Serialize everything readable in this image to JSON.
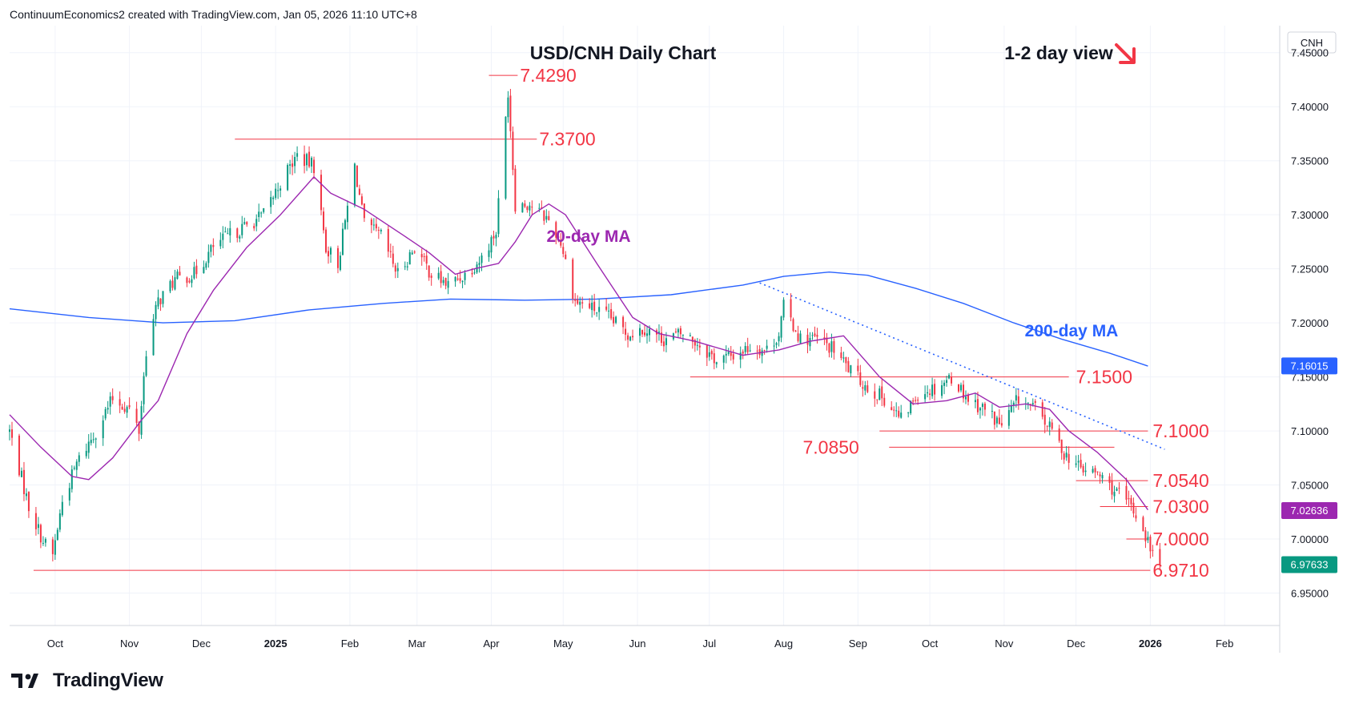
{
  "header": {
    "attribution": "ContinuumEconomics2 created with TradingView.com, Jan 05, 2026 11:10 UTC+8"
  },
  "brand": {
    "name": "TradingView"
  },
  "chart_data": {
    "type": "candlestick",
    "title": "USD/CNH Daily Chart",
    "view_label": "1-2 day view",
    "view_direction_icon": "down-right-arrow",
    "axis_symbol": "CNH",
    "ylim": [
      6.92,
      7.475
    ],
    "yticks": [
      "7.45000",
      "7.40000",
      "7.35000",
      "7.30000",
      "7.25000",
      "7.20000",
      "7.15000",
      "7.10000",
      "7.05000",
      "7.00000",
      "6.95000"
    ],
    "xticks": [
      {
        "label": "Oct",
        "date": "2024-10-01",
        "bold": false
      },
      {
        "label": "Nov",
        "date": "2024-11-01",
        "bold": false
      },
      {
        "label": "Dec",
        "date": "2024-12-01",
        "bold": false
      },
      {
        "label": "2025",
        "date": "2025-01-01",
        "bold": true
      },
      {
        "label": "Feb",
        "date": "2025-02-01",
        "bold": false
      },
      {
        "label": "Mar",
        "date": "2025-03-01",
        "bold": false
      },
      {
        "label": "Apr",
        "date": "2025-04-01",
        "bold": false
      },
      {
        "label": "May",
        "date": "2025-05-01",
        "bold": false
      },
      {
        "label": "Jun",
        "date": "2025-06-01",
        "bold": false
      },
      {
        "label": "Jul",
        "date": "2025-07-01",
        "bold": false
      },
      {
        "label": "Aug",
        "date": "2025-08-01",
        "bold": false
      },
      {
        "label": "Sep",
        "date": "2025-09-01",
        "bold": false
      },
      {
        "label": "Oct",
        "date": "2025-10-01",
        "bold": false
      },
      {
        "label": "Nov",
        "date": "2025-11-01",
        "bold": false
      },
      {
        "label": "Dec",
        "date": "2025-12-01",
        "bold": false
      },
      {
        "label": "2026",
        "date": "2026-01-01",
        "bold": true
      },
      {
        "label": "Feb",
        "date": "2026-02-01",
        "bold": false
      }
    ],
    "xlim": [
      "2024-09-12",
      "2026-02-24"
    ],
    "close_anchors": [
      [
        "2024-09-12",
        7.1
      ],
      [
        "2024-09-20",
        7.03
      ],
      [
        "2024-09-26",
        6.998
      ],
      [
        "2024-09-30",
        6.985
      ],
      [
        "2024-10-04",
        7.035
      ],
      [
        "2024-10-10",
        7.07
      ],
      [
        "2024-10-18",
        7.1
      ],
      [
        "2024-10-25",
        7.13
      ],
      [
        "2024-11-01",
        7.12
      ],
      [
        "2024-11-05",
        7.1
      ],
      [
        "2024-11-08",
        7.175
      ],
      [
        "2024-11-13",
        7.22
      ],
      [
        "2024-11-20",
        7.24
      ],
      [
        "2024-11-28",
        7.245
      ],
      [
        "2024-12-06",
        7.27
      ],
      [
        "2024-12-12",
        7.28
      ],
      [
        "2024-12-20",
        7.29
      ],
      [
        "2024-12-27",
        7.3
      ],
      [
        "2025-01-03",
        7.33
      ],
      [
        "2025-01-10",
        7.355
      ],
      [
        "2025-01-17",
        7.345
      ],
      [
        "2025-01-22",
        7.27
      ],
      [
        "2025-01-27",
        7.255
      ],
      [
        "2025-02-03",
        7.345
      ],
      [
        "2025-02-07",
        7.29
      ],
      [
        "2025-02-14",
        7.28
      ],
      [
        "2025-02-21",
        7.245
      ],
      [
        "2025-02-28",
        7.27
      ],
      [
        "2025-03-07",
        7.245
      ],
      [
        "2025-03-14",
        7.235
      ],
      [
        "2025-03-21",
        7.245
      ],
      [
        "2025-03-28",
        7.26
      ],
      [
        "2025-04-03",
        7.285
      ],
      [
        "2025-04-08",
        7.415
      ],
      [
        "2025-04-11",
        7.31
      ],
      [
        "2025-04-17",
        7.31
      ],
      [
        "2025-04-25",
        7.295
      ],
      [
        "2025-04-30",
        7.275
      ],
      [
        "2025-05-06",
        7.22
      ],
      [
        "2025-05-12",
        7.215
      ],
      [
        "2025-05-20",
        7.205
      ],
      [
        "2025-05-28",
        7.19
      ],
      [
        "2025-06-04",
        7.195
      ],
      [
        "2025-06-12",
        7.185
      ],
      [
        "2025-06-20",
        7.19
      ],
      [
        "2025-06-27",
        7.18
      ],
      [
        "2025-07-04",
        7.165
      ],
      [
        "2025-07-11",
        7.17
      ],
      [
        "2025-07-18",
        7.178
      ],
      [
        "2025-07-25",
        7.175
      ],
      [
        "2025-07-30",
        7.19
      ],
      [
        "2025-08-01",
        7.215
      ],
      [
        "2025-08-08",
        7.185
      ],
      [
        "2025-08-15",
        7.185
      ],
      [
        "2025-08-22",
        7.175
      ],
      [
        "2025-08-29",
        7.155
      ],
      [
        "2025-09-05",
        7.14
      ],
      [
        "2025-09-12",
        7.13
      ],
      [
        "2025-09-19",
        7.11
      ],
      [
        "2025-09-26",
        7.135
      ],
      [
        "2025-10-03",
        7.14
      ],
      [
        "2025-10-10",
        7.15
      ],
      [
        "2025-10-17",
        7.13
      ],
      [
        "2025-10-24",
        7.12
      ],
      [
        "2025-10-31",
        7.105
      ],
      [
        "2025-11-07",
        7.13
      ],
      [
        "2025-11-14",
        7.12
      ],
      [
        "2025-11-21",
        7.1
      ],
      [
        "2025-11-26",
        7.08
      ],
      [
        "2025-12-03",
        7.065
      ],
      [
        "2025-12-10",
        7.06
      ],
      [
        "2025-12-17",
        7.045
      ],
      [
        "2025-12-24",
        7.03
      ],
      [
        "2025-12-29",
        7.01
      ],
      [
        "2026-01-02",
        6.985
      ],
      [
        "2026-01-05",
        6.976
      ]
    ],
    "ma20": {
      "label": "20-day MA",
      "color": "#9c27b0",
      "points": [
        [
          "2024-09-12",
          7.115
        ],
        [
          "2024-09-25",
          7.085
        ],
        [
          "2024-10-08",
          7.058
        ],
        [
          "2024-10-15",
          7.055
        ],
        [
          "2024-10-25",
          7.075
        ],
        [
          "2024-11-06",
          7.11
        ],
        [
          "2024-11-13",
          7.128
        ],
        [
          "2024-11-25",
          7.19
        ],
        [
          "2024-12-06",
          7.23
        ],
        [
          "2024-12-20",
          7.27
        ],
        [
          "2025-01-03",
          7.3
        ],
        [
          "2025-01-17",
          7.335
        ],
        [
          "2025-01-24",
          7.32
        ],
        [
          "2025-02-07",
          7.305
        ],
        [
          "2025-02-24",
          7.28
        ],
        [
          "2025-03-06",
          7.265
        ],
        [
          "2025-03-17",
          7.245
        ],
        [
          "2025-03-25",
          7.25
        ],
        [
          "2025-04-04",
          7.255
        ],
        [
          "2025-04-11",
          7.275
        ],
        [
          "2025-04-18",
          7.3
        ],
        [
          "2025-04-25",
          7.31
        ],
        [
          "2025-05-02",
          7.3
        ],
        [
          "2025-05-15",
          7.255
        ],
        [
          "2025-05-30",
          7.205
        ],
        [
          "2025-06-10",
          7.19
        ],
        [
          "2025-06-25",
          7.183
        ],
        [
          "2025-07-15",
          7.17
        ],
        [
          "2025-07-30",
          7.175
        ],
        [
          "2025-08-12",
          7.183
        ],
        [
          "2025-08-26",
          7.188
        ],
        [
          "2025-09-10",
          7.15
        ],
        [
          "2025-09-24",
          7.125
        ],
        [
          "2025-10-08",
          7.128
        ],
        [
          "2025-10-20",
          7.135
        ],
        [
          "2025-10-30",
          7.122
        ],
        [
          "2025-11-10",
          7.125
        ],
        [
          "2025-11-20",
          7.12
        ],
        [
          "2025-11-28",
          7.1
        ],
        [
          "2025-12-10",
          7.08
        ],
        [
          "2025-12-22",
          7.055
        ],
        [
          "2025-12-31",
          7.027
        ]
      ],
      "last_value": "7.02636"
    },
    "ma200": {
      "label": "200-day MA",
      "color": "#2962ff",
      "points": [
        [
          "2024-09-12",
          7.213
        ],
        [
          "2024-10-15",
          7.205
        ],
        [
          "2024-11-15",
          7.2
        ],
        [
          "2024-12-15",
          7.202
        ],
        [
          "2025-01-15",
          7.212
        ],
        [
          "2025-02-15",
          7.218
        ],
        [
          "2025-03-15",
          7.222
        ],
        [
          "2025-04-15",
          7.221
        ],
        [
          "2025-05-15",
          7.222
        ],
        [
          "2025-06-15",
          7.226
        ],
        [
          "2025-07-15",
          7.235
        ],
        [
          "2025-08-01",
          7.243
        ],
        [
          "2025-08-20",
          7.247
        ],
        [
          "2025-09-05",
          7.244
        ],
        [
          "2025-09-25",
          7.232
        ],
        [
          "2025-10-15",
          7.218
        ],
        [
          "2025-11-05",
          7.2
        ],
        [
          "2025-11-25",
          7.185
        ],
        [
          "2025-12-15",
          7.172
        ],
        [
          "2025-12-31",
          7.16
        ]
      ],
      "last_value": "7.16015"
    },
    "trendline": {
      "color": "#2962ff",
      "style": "dotted",
      "from": [
        "2025-07-22",
        7.237
      ],
      "to": [
        "2026-01-07",
        7.083
      ]
    },
    "levels": [
      {
        "value": "7.4290",
        "start": "2025-03-31",
        "end": "2025-04-12",
        "label_date": "2025-04-13",
        "label_value": 7.429
      },
      {
        "value": "7.3700",
        "start": "2024-12-15",
        "end": "2025-04-20",
        "label_date": "2025-04-21",
        "label_value": 7.37
      },
      {
        "value": "7.1500",
        "start": "2025-06-23",
        "end": "2025-11-28",
        "label_date": "2025-12-01",
        "label_value": 7.15
      },
      {
        "value": "7.1000",
        "start": "2025-09-10",
        "end": "2025-12-31",
        "label_date": "2026-01-02",
        "label_value": 7.1
      },
      {
        "value": "7.0850",
        "start": "2025-09-14",
        "end": "2025-12-17",
        "label_date": "2025-08-09",
        "label_value": 7.085
      },
      {
        "value": "7.0540",
        "start": "2025-12-01",
        "end": "2025-12-31",
        "label_date": "2026-01-02",
        "label_value": 7.054
      },
      {
        "value": "7.0300",
        "start": "2025-12-11",
        "end": "2025-12-31",
        "label_date": "2026-01-02",
        "label_value": 7.03
      },
      {
        "value": "7.0000",
        "start": "2025-12-22",
        "end": "2025-12-31",
        "label_date": "2026-01-02",
        "label_value": 7.0
      },
      {
        "value": "6.9710",
        "start": "2024-09-22",
        "end": "2026-01-01",
        "label_date": "2026-01-02",
        "label_value": 6.971
      }
    ],
    "last_price": "6.97633",
    "colors": {
      "up": "#089981",
      "down": "#f23645",
      "level": "#f23645",
      "label": "#f23645",
      "grid": "#f0f3fa",
      "axis": "#787b86"
    }
  }
}
